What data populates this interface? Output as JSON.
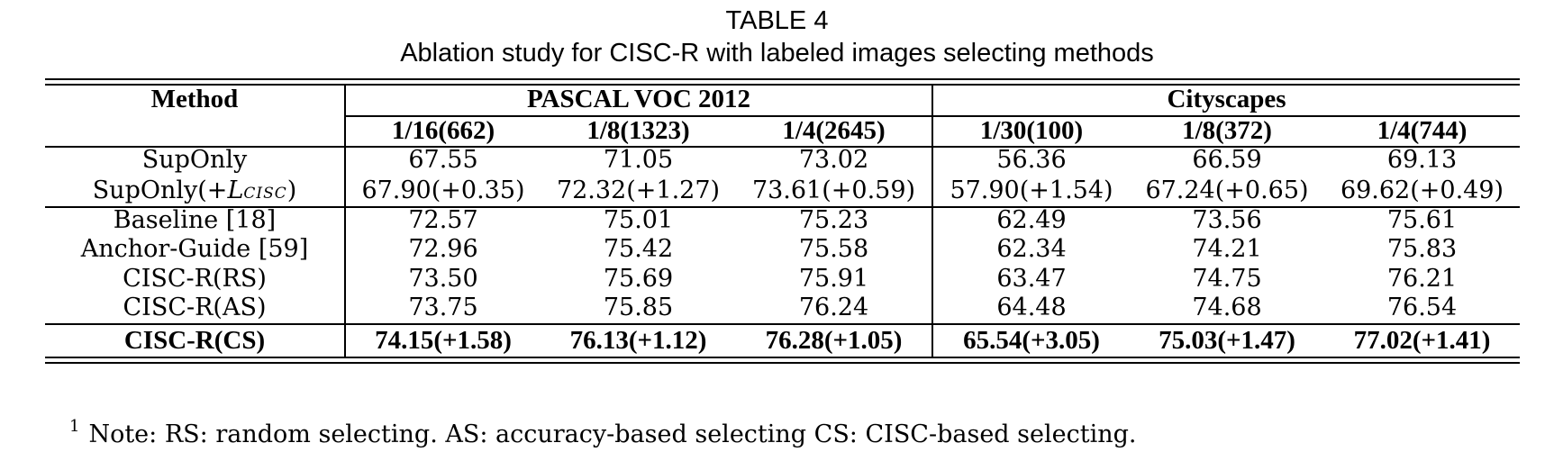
{
  "caption": {
    "label": "TABLE 4",
    "title": "Ablation study for CISC-R with labeled images selecting methods"
  },
  "table": {
    "method_header": "Method",
    "groups": [
      "PASCAL VOC 2012",
      "Cityscapes"
    ],
    "columns": [
      "1/16(662)",
      "1/8(1323)",
      "1/4(2645)",
      "1/30(100)",
      "1/8(372)",
      "1/4(744)"
    ],
    "rows": [
      {
        "method": "SupOnly",
        "values": [
          "67.55",
          "71.05",
          "73.02",
          "56.36",
          "66.59",
          "69.13"
        ]
      },
      {
        "method_prefix": "SupOnly(+",
        "method_math_base": "L",
        "method_math_sub": "CISC",
        "method_suffix": ")",
        "values": [
          "67.90(+0.35)",
          "72.32(+1.27)",
          "73.61(+0.59)",
          "57.90(+1.54)",
          "67.24(+0.65)",
          "69.62(+0.49)"
        ]
      },
      {
        "method": "Baseline [18]",
        "values": [
          "72.57",
          "75.01",
          "75.23",
          "62.49",
          "73.56",
          "75.61"
        ]
      },
      {
        "method": "Anchor-Guide [59]",
        "values": [
          "72.96",
          "75.42",
          "75.58",
          "62.34",
          "74.21",
          "75.83"
        ]
      },
      {
        "method": "CISC-R(RS)",
        "values": [
          "73.50",
          "75.69",
          "75.91",
          "63.47",
          "74.75",
          "76.21"
        ]
      },
      {
        "method": "CISC-R(AS)",
        "values": [
          "73.75",
          "75.85",
          "76.24",
          "64.48",
          "74.68",
          "76.54"
        ]
      },
      {
        "method": "CISC-R(CS)",
        "values": [
          "74.15(+1.58)",
          "76.13(+1.12)",
          "76.28(+1.05)",
          "65.54(+3.05)",
          "75.03(+1.47)",
          "77.02(+1.41)"
        ]
      }
    ]
  },
  "note": {
    "marker": "1",
    "text": "Note: RS: random selecting. AS: accuracy-based selecting CS: CISC-based selecting."
  }
}
